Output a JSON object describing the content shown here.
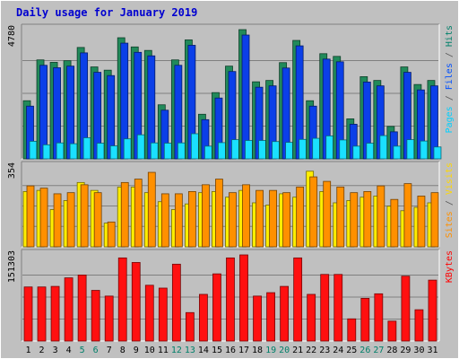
{
  "title": "Daily usage for January 2019",
  "chart_data": [
    {
      "type": "bar",
      "x": [
        1,
        2,
        3,
        4,
        5,
        6,
        7,
        8,
        9,
        10,
        11,
        12,
        13,
        14,
        15,
        16,
        17,
        18,
        19,
        20,
        21,
        22,
        23,
        24,
        25,
        26,
        27,
        28,
        29,
        30,
        31
      ],
      "weekend_days": [
        5,
        6,
        12,
        13,
        19,
        20,
        26,
        27
      ],
      "ymax": 4780,
      "max_label": "4780",
      "side_labels": [
        {
          "text": "Pages",
          "color": "#00d0ff"
        },
        {
          "text": " / ",
          "color": "#555555"
        },
        {
          "text": "Files",
          "color": "#0050ff"
        },
        {
          "text": " / ",
          "color": "#555555"
        },
        {
          "text": "Hits",
          "color": "#00806a"
        }
      ],
      "series": [
        {
          "name": "Hits",
          "color": "#218a5a",
          "values": [
            2150,
            3660,
            3570,
            3630,
            4120,
            3400,
            3280,
            4480,
            4140,
            4010,
            2000,
            3660,
            4400,
            1650,
            2450,
            3430,
            4780,
            2850,
            2900,
            3560,
            4380,
            2150,
            3890,
            3790,
            1480,
            3040,
            2900,
            1200,
            3400,
            2750,
            2900
          ]
        },
        {
          "name": "Files",
          "color": "#0b3fe8",
          "values": [
            1950,
            3460,
            3370,
            3430,
            3920,
            3200,
            3080,
            4280,
            3940,
            3810,
            1800,
            3460,
            4200,
            1450,
            2250,
            3230,
            4580,
            2650,
            2700,
            3360,
            4180,
            1950,
            3690,
            3590,
            1280,
            2840,
            2700,
            1000,
            3200,
            2550,
            2700
          ]
        },
        {
          "name": "Pages",
          "color": "#1ae0ff",
          "values": [
            650,
            520,
            590,
            560,
            780,
            580,
            480,
            740,
            890,
            590,
            580,
            590,
            930,
            470,
            600,
            710,
            680,
            680,
            640,
            610,
            720,
            760,
            850,
            700,
            470,
            580,
            860,
            470,
            710,
            660,
            440
          ]
        }
      ]
    },
    {
      "type": "bar",
      "x": [
        1,
        2,
        3,
        4,
        5,
        6,
        7,
        8,
        9,
        10,
        11,
        12,
        13,
        14,
        15,
        16,
        17,
        18,
        19,
        20,
        21,
        22,
        23,
        24,
        25,
        26,
        27,
        28,
        29,
        30,
        31
      ],
      "ymax": 354,
      "max_label": "354",
      "side_labels": [
        {
          "text": "Sites",
          "color": "#ff9000"
        },
        {
          "text": " / ",
          "color": "#555555"
        },
        {
          "text": "Visits",
          "color": "#ffd800"
        }
      ],
      "series": [
        {
          "name": "Visits",
          "color": "#ffee00",
          "values": [
            245,
            250,
            165,
            205,
            285,
            250,
            105,
            265,
            265,
            240,
            200,
            165,
            190,
            240,
            245,
            220,
            250,
            195,
            185,
            235,
            220,
            335,
            245,
            195,
            205,
            220,
            225,
            180,
            160,
            175,
            195
          ]
        },
        {
          "name": "Sites",
          "color": "#ff9000",
          "values": [
            270,
            260,
            235,
            240,
            275,
            240,
            110,
            285,
            300,
            330,
            235,
            235,
            245,
            275,
            300,
            240,
            275,
            250,
            250,
            240,
            265,
            310,
            290,
            265,
            240,
            245,
            270,
            210,
            280,
            225,
            240
          ]
        }
      ]
    },
    {
      "type": "bar",
      "x": [
        1,
        2,
        3,
        4,
        5,
        6,
        7,
        8,
        9,
        10,
        11,
        12,
        13,
        14,
        15,
        16,
        17,
        18,
        19,
        20,
        21,
        22,
        23,
        24,
        25,
        26,
        27,
        28,
        29,
        30,
        31
      ],
      "ymax": 151303,
      "max_label": "151303",
      "side_labels": [
        {
          "text": "KBytes",
          "color": "#ff0000"
        }
      ],
      "series": [
        {
          "name": "KBytes",
          "color": "#ff1010",
          "values": [
            95000,
            95000,
            96000,
            111000,
            116000,
            89000,
            79000,
            146000,
            138000,
            98000,
            93000,
            135000,
            50000,
            82000,
            118000,
            146000,
            151303,
            79000,
            85000,
            96000,
            146000,
            82000,
            117000,
            117000,
            39000,
            75000,
            83000,
            35000,
            114000,
            55000,
            107000
          ]
        }
      ]
    }
  ]
}
